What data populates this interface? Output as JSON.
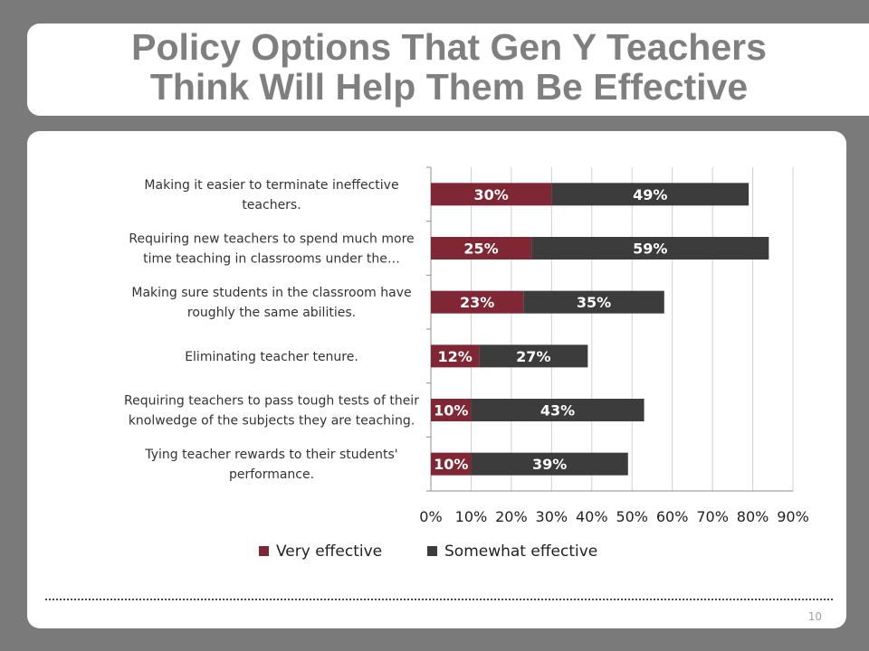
{
  "slide": {
    "title_line1": "Policy Options That Gen Y Teachers",
    "title_line2": "Think Will Help Them Be Effective",
    "page_number": "10"
  },
  "colors": {
    "very_effective": "#7f2734",
    "somewhat_effective": "#3c3c3c",
    "background": "#7a7a7a",
    "title_text": "#7f7f7f"
  },
  "chart_data": {
    "type": "bar",
    "orientation": "horizontal",
    "stacked": true,
    "categories": [
      [
        "Making it easier to terminate ineffective",
        "teachers."
      ],
      [
        "Requiring new teachers to spend much more",
        "time teaching in classrooms under the…"
      ],
      [
        "Making sure students in the classroom have",
        "roughly the same abilities."
      ],
      [
        "Eliminating teacher tenure."
      ],
      [
        "Requiring teachers to pass tough tests of their",
        "knolwedge of the subjects they are teaching."
      ],
      [
        "Tying teacher rewards to their students'",
        "performance."
      ]
    ],
    "series": [
      {
        "name": "Very effective",
        "values": [
          30,
          25,
          23,
          12,
          10,
          10
        ]
      },
      {
        "name": "Somewhat effective",
        "values": [
          49,
          59,
          35,
          27,
          43,
          39
        ]
      }
    ],
    "data_label_suffix": "%",
    "x_ticks": [
      "0%",
      "10%",
      "20%",
      "30%",
      "40%",
      "50%",
      "60%",
      "70%",
      "80%",
      "90%"
    ],
    "xlim": [
      0,
      90
    ],
    "grid": "vertical",
    "legend_position": "bottom"
  }
}
